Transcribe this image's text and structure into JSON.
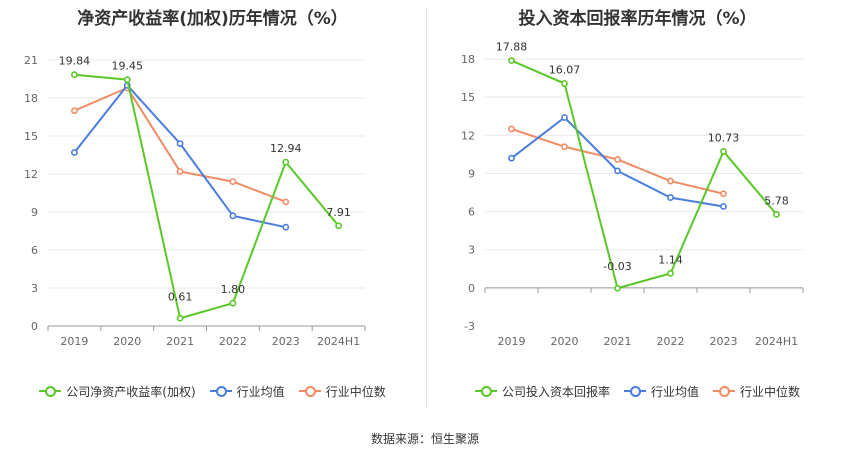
{
  "colors": {
    "company": "#5ac828",
    "avg": "#4a7ddc",
    "median": "#f08c64",
    "grid": "#e8e8ee",
    "axis": "#999999",
    "text": "#666666"
  },
  "source": "数据来源：恒生聚源",
  "chart_data": [
    {
      "type": "line",
      "title": "净资产收益率(加权)历年情况（%）",
      "categories": [
        "2019",
        "2020",
        "2021",
        "2022",
        "2023",
        "2024H1"
      ],
      "ylim": [
        0,
        21
      ],
      "yticks": [
        0,
        3,
        6,
        9,
        12,
        15,
        18,
        21
      ],
      "grid": true,
      "legend_position": "bottom",
      "series": [
        {
          "name": "公司净资产收益率(加权)",
          "color": "#5ac828",
          "values": [
            19.84,
            19.45,
            0.61,
            1.8,
            12.94,
            7.91
          ],
          "labels": [
            "19.84",
            "19.45",
            "0.61",
            "1.80",
            "12.94",
            "7.91"
          ]
        },
        {
          "name": "行业均值",
          "color": "#4a7ddc",
          "values": [
            13.7,
            19.0,
            14.4,
            8.7,
            7.8,
            null
          ]
        },
        {
          "name": "行业中位数",
          "color": "#f08c64",
          "values": [
            17.0,
            18.8,
            12.2,
            11.4,
            9.8,
            null
          ]
        }
      ]
    },
    {
      "type": "line",
      "title": "投入资本回报率历年情况（%）",
      "categories": [
        "2019",
        "2020",
        "2021",
        "2022",
        "2023",
        "2024H1"
      ],
      "ylim": [
        -3,
        18
      ],
      "yticks": [
        -3,
        0,
        3,
        6,
        9,
        12,
        15,
        18
      ],
      "grid": true,
      "legend_position": "bottom",
      "series": [
        {
          "name": "公司投入资本回报率",
          "color": "#5ac828",
          "values": [
            17.88,
            16.07,
            -0.03,
            1.14,
            10.73,
            5.78
          ],
          "labels": [
            "17.88",
            "16.07",
            "-0.03",
            "1.14",
            "10.73",
            "5.78"
          ]
        },
        {
          "name": "行业均值",
          "color": "#4a7ddc",
          "values": [
            10.2,
            13.4,
            9.2,
            7.1,
            6.4,
            null
          ]
        },
        {
          "name": "行业中位数",
          "color": "#f08c64",
          "values": [
            12.5,
            11.1,
            10.1,
            8.4,
            7.4,
            null
          ]
        }
      ]
    }
  ]
}
